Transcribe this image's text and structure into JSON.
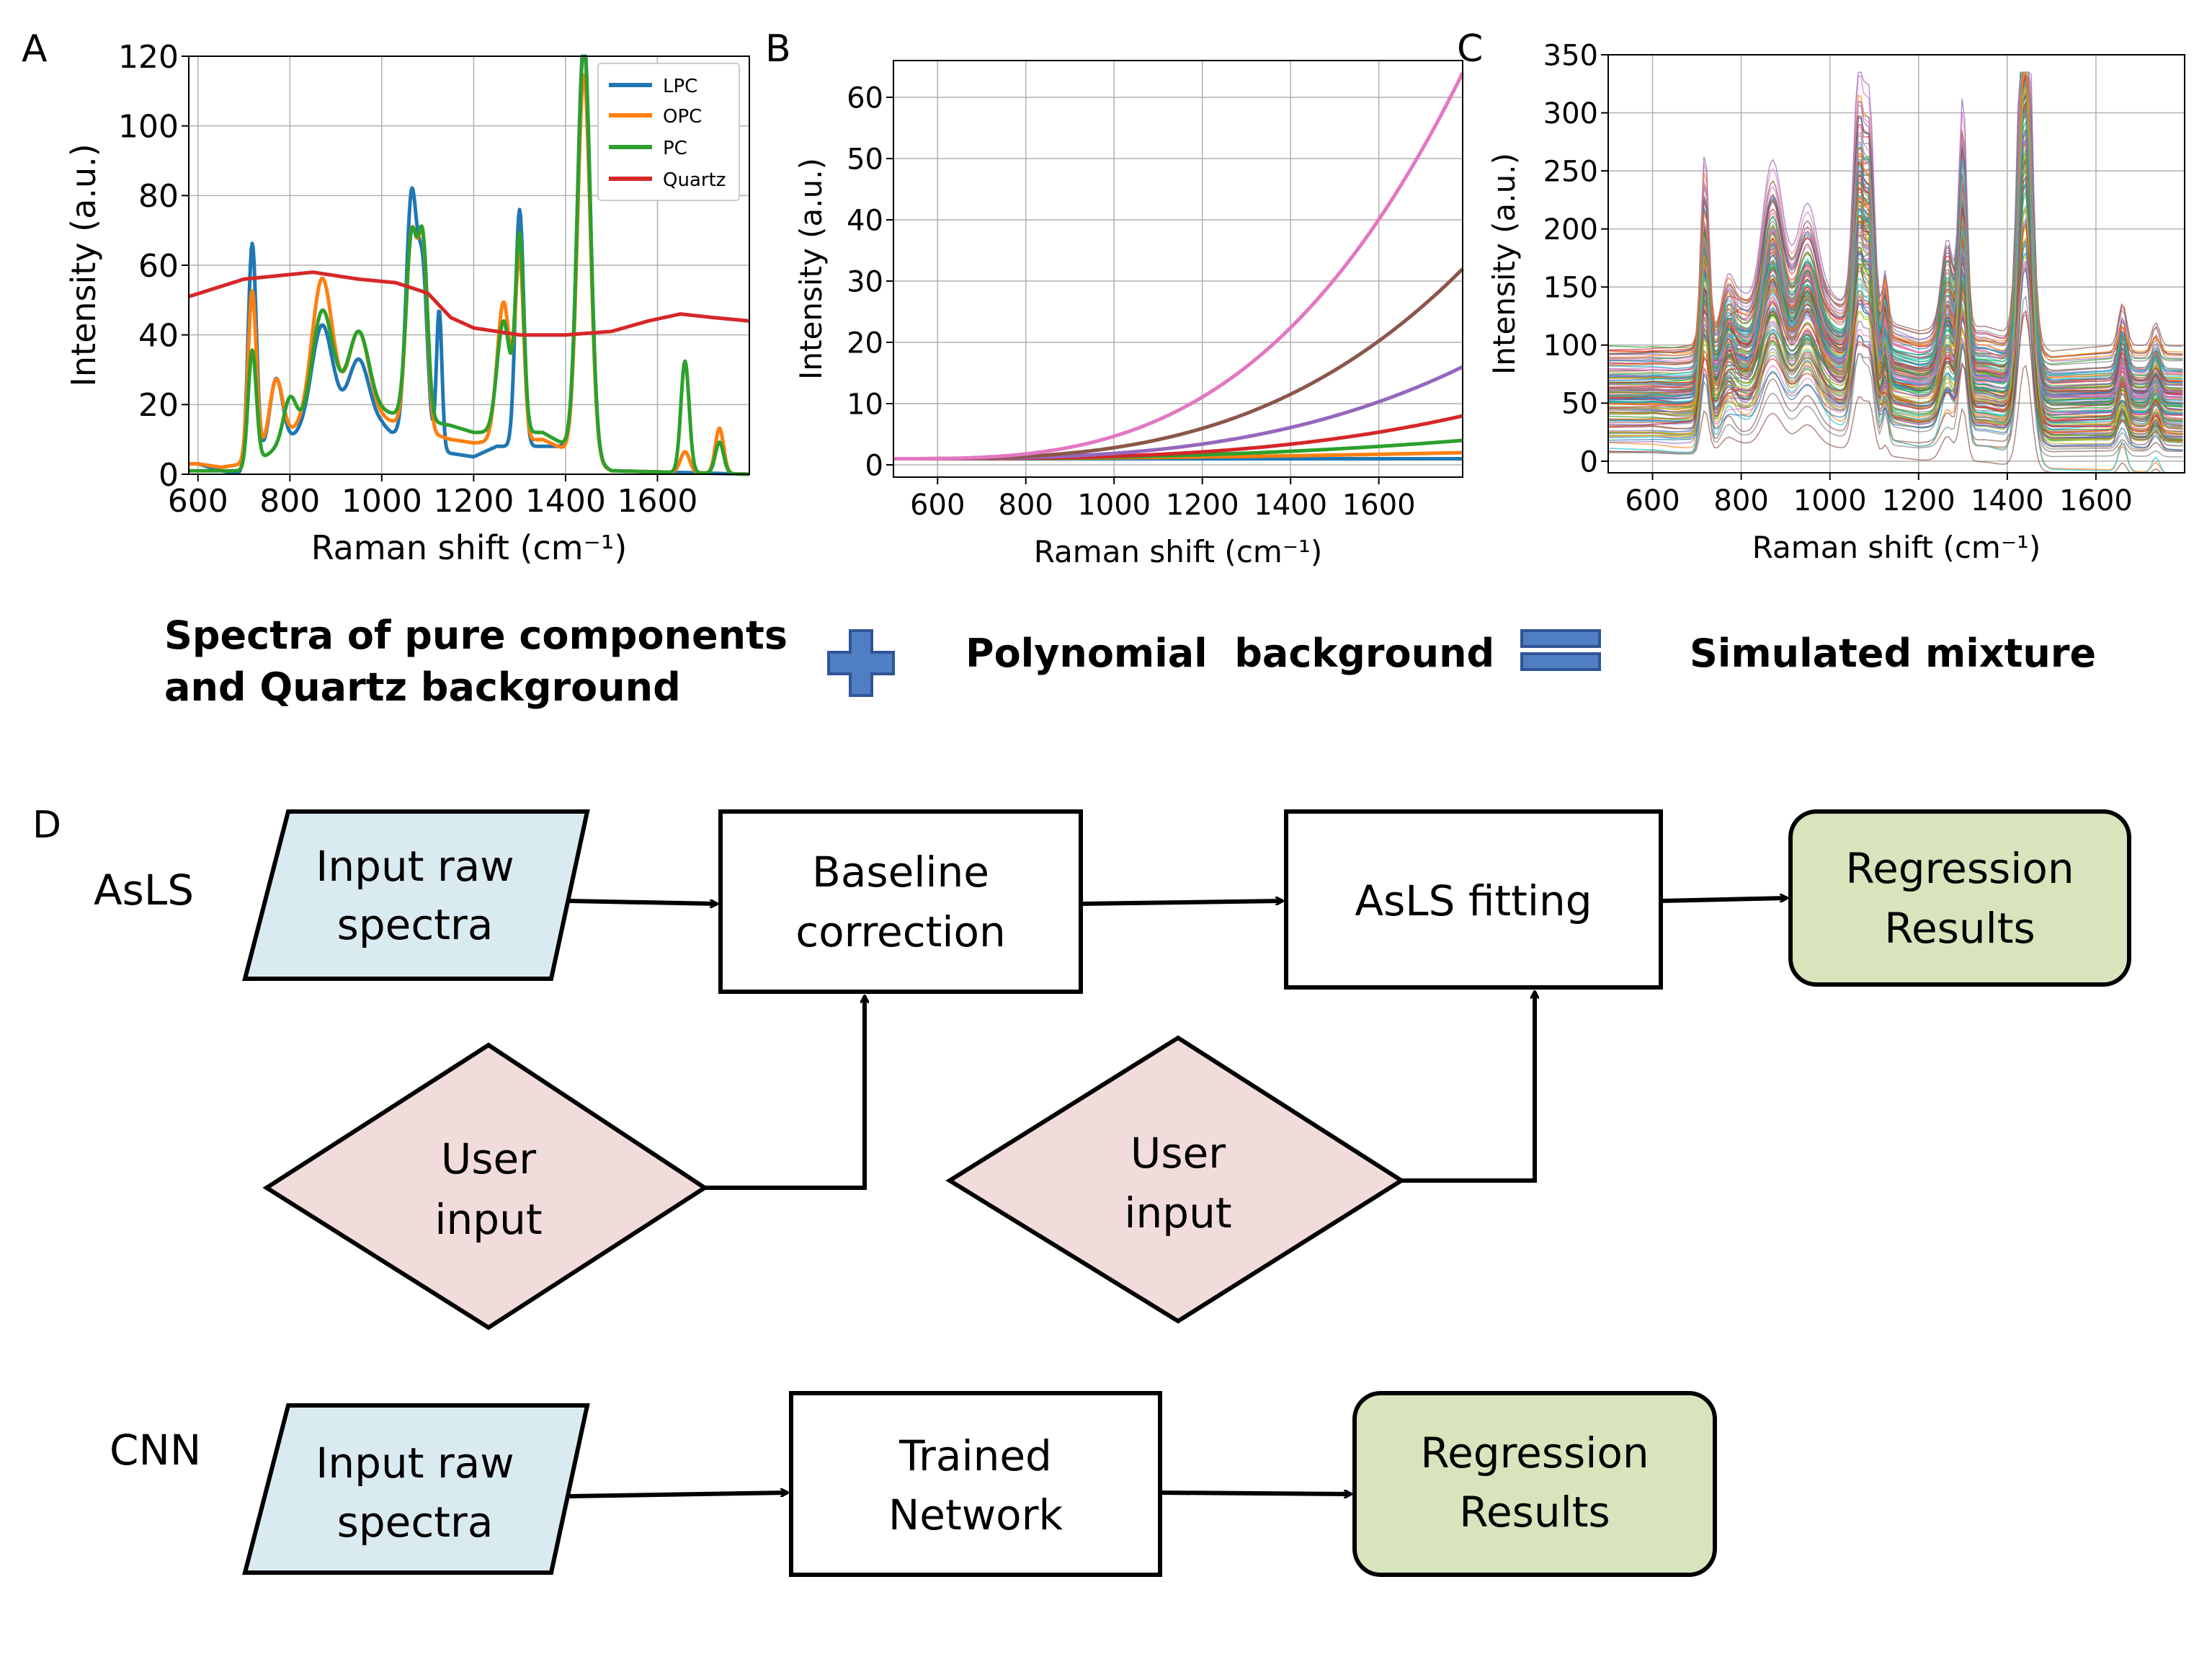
{
  "panels": {
    "A": "A",
    "B": "B",
    "C": "C",
    "D": "D"
  },
  "chart_data": [
    {
      "panel": "A",
      "type": "line",
      "xlabel": "Raman shift (cm⁻¹)",
      "ylabel": "Intensity (a.u.)",
      "xlim": [
        580,
        1800
      ],
      "ylim": [
        0,
        120
      ],
      "xticks": [
        600,
        800,
        1000,
        1200,
        1400,
        1600
      ],
      "yticks": [
        0,
        20,
        40,
        60,
        80,
        100,
        120
      ],
      "grid": true,
      "legend_position": "top-right",
      "series": [
        {
          "name": "LPC",
          "color": "#1f77b4",
          "peaks": [
            [
              718,
              64,
              9
            ],
            [
              770,
              20,
              14
            ],
            [
              870,
              28,
              22
            ],
            [
              950,
              18,
              22
            ],
            [
              1065,
              70,
              12
            ],
            [
              1090,
              45,
              10
            ],
            [
              1125,
              40,
              6
            ],
            [
              1300,
              68,
              9
            ],
            [
              1440,
              120,
              14
            ]
          ],
          "points": [
            [
              600,
              3
            ],
            [
              650,
              1
            ],
            [
              700,
              0
            ],
            [
              740,
              5
            ],
            [
              800,
              10
            ],
            [
              850,
              14
            ],
            [
              900,
              16
            ],
            [
              1000,
              14
            ],
            [
              1020,
              12
            ],
            [
              1150,
              6
            ],
            [
              1200,
              5
            ],
            [
              1250,
              8
            ],
            [
              1350,
              8
            ],
            [
              1400,
              8
            ],
            [
              1500,
              1
            ],
            [
              1800,
              0
            ]
          ]
        },
        {
          "name": "OPC",
          "color": "#ff7f0e",
          "peaks": [
            [
              718,
              48,
              9
            ],
            [
              770,
              18,
              14
            ],
            [
              870,
              40,
              22
            ],
            [
              950,
              24,
              22
            ],
            [
              1065,
              55,
              12
            ],
            [
              1090,
              50,
              10
            ],
            [
              1265,
              40,
              14
            ],
            [
              1300,
              52,
              9
            ],
            [
              1440,
              110,
              14
            ],
            [
              1660,
              6,
              10
            ],
            [
              1735,
              13,
              9
            ]
          ],
          "points": [
            [
              600,
              3
            ],
            [
              650,
              2
            ],
            [
              700,
              3
            ],
            [
              800,
              12
            ],
            [
              900,
              18
            ],
            [
              1000,
              16
            ],
            [
              1150,
              10
            ],
            [
              1200,
              9
            ],
            [
              1350,
              10
            ],
            [
              1500,
              1
            ],
            [
              1800,
              0
            ]
          ]
        },
        {
          "name": "PC",
          "color": "#2ca02c",
          "peaks": [
            [
              718,
              33,
              9
            ],
            [
              800,
              12,
              14
            ],
            [
              870,
              30,
              22
            ],
            [
              950,
              22,
              22
            ],
            [
              1065,
              52,
              12
            ],
            [
              1090,
              48,
              10
            ],
            [
              1265,
              32,
              14
            ],
            [
              1300,
              56,
              9
            ],
            [
              1440,
              118,
              14
            ],
            [
              1660,
              32,
              9
            ],
            [
              1735,
              9,
              9
            ]
          ],
          "points": [
            [
              600,
              1
            ],
            [
              650,
              1
            ],
            [
              700,
              1
            ],
            [
              800,
              10
            ],
            [
              900,
              20
            ],
            [
              1000,
              18
            ],
            [
              1150,
              14
            ],
            [
              1200,
              12
            ],
            [
              1350,
              12
            ],
            [
              1500,
              1
            ],
            [
              1800,
              0
            ]
          ]
        },
        {
          "name": "Quartz",
          "color": "#d62728",
          "points": [
            [
              580,
              51
            ],
            [
              700,
              56
            ],
            [
              850,
              58
            ],
            [
              950,
              56
            ],
            [
              1030,
              55
            ],
            [
              1100,
              52
            ],
            [
              1150,
              45
            ],
            [
              1200,
              42
            ],
            [
              1300,
              40
            ],
            [
              1400,
              40
            ],
            [
              1500,
              41
            ],
            [
              1580,
              44
            ],
            [
              1650,
              46
            ],
            [
              1720,
              45
            ],
            [
              1800,
              44
            ]
          ]
        }
      ]
    },
    {
      "panel": "B",
      "type": "line",
      "xlabel": "Raman shift (cm⁻¹)",
      "ylabel": "Intensity (a.u.)",
      "xlim": [
        500,
        1790
      ],
      "ylim": [
        -2,
        66
      ],
      "xticks": [
        600,
        800,
        1000,
        1200,
        1400,
        1600
      ],
      "yticks": [
        0,
        10,
        20,
        30,
        40,
        50,
        60
      ],
      "grid": true,
      "series": [
        {
          "color": "#1f77b4",
          "start": 1,
          "end": 1,
          "power": 1
        },
        {
          "color": "#ff7f0e",
          "start": 1,
          "end": 2,
          "power": 2
        },
        {
          "color": "#2ca02c",
          "start": 1,
          "end": 4,
          "power": 2.5
        },
        {
          "color": "#d62728",
          "start": 1,
          "end": 8,
          "power": 3
        },
        {
          "color": "#9467bd",
          "start": 1,
          "end": 16,
          "power": 3
        },
        {
          "color": "#8c564b",
          "start": 1,
          "end": 32,
          "power": 3
        },
        {
          "color": "#e377c2",
          "start": 1,
          "end": 64,
          "power": 3
        }
      ]
    },
    {
      "panel": "C",
      "type": "line",
      "xlabel": "Raman shift (cm⁻¹)",
      "ylabel": "Intensity (a.u.)",
      "xlim": [
        500,
        1800
      ],
      "ylim": [
        -10,
        350
      ],
      "xticks": [
        600,
        800,
        1000,
        1200,
        1400,
        1600
      ],
      "yticks": [
        0,
        50,
        100,
        150,
        200,
        250,
        300,
        350
      ],
      "grid": true,
      "peak_max": 335,
      "series_count": "many",
      "colors": [
        "#1f77b4",
        "#ff7f0e",
        "#2ca02c",
        "#d62728",
        "#9467bd",
        "#8c564b",
        "#e377c2",
        "#7f7f7f",
        "#bcbd22",
        "#17becf"
      ]
    }
  ],
  "equation": {
    "left_caption": [
      "Spectra of pure components",
      "and Quartz background"
    ],
    "plus_color": "#4f7fc2",
    "middle_caption": "Polynomial  background",
    "equals_color": "#4f7fc2",
    "right_caption": "Simulated mixture"
  },
  "flowchart": {
    "asls": {
      "label": "AsLS",
      "input": [
        "Input raw",
        "spectra"
      ],
      "baseline": [
        "Baseline",
        "correction"
      ],
      "fitting": "AsLS fitting",
      "results": [
        "Regression",
        "Results"
      ],
      "user1": [
        "User",
        "input"
      ],
      "user2": [
        "User",
        "input"
      ]
    },
    "cnn": {
      "label": "CNN",
      "input": [
        "Input raw",
        "spectra"
      ],
      "network": [
        "Trained",
        "Network"
      ],
      "results": [
        "Regression",
        "Results"
      ]
    },
    "colors": {
      "input": "#daeaf1",
      "user": "#f2dcdb",
      "results": "#d8e4bc"
    }
  }
}
